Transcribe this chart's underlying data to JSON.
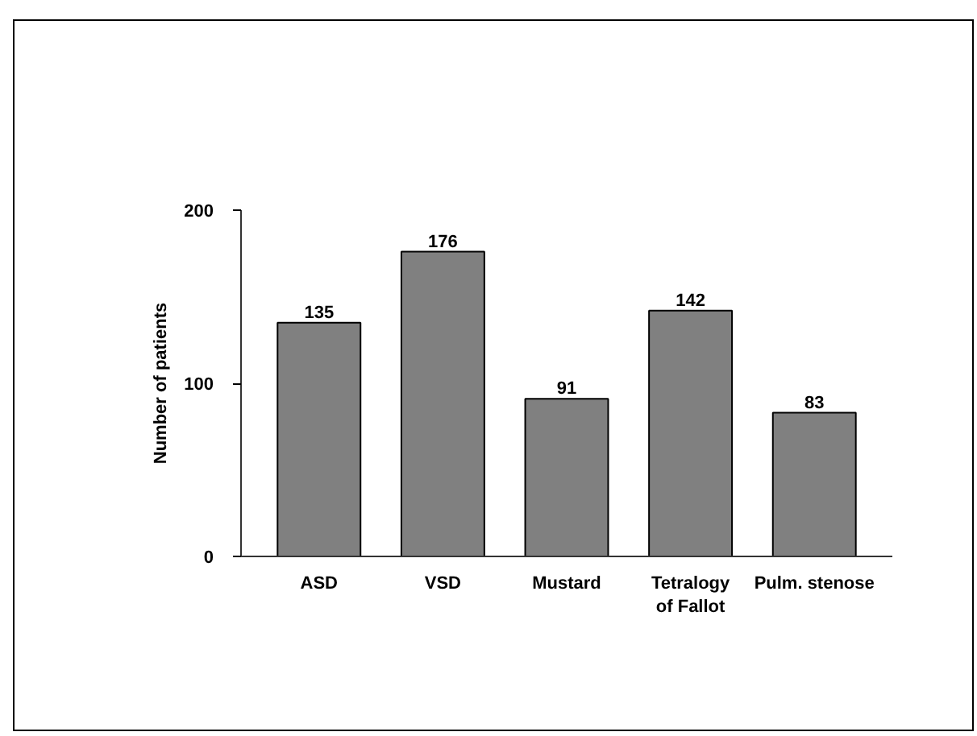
{
  "chart_data": {
    "type": "bar",
    "ylabel": "Number of patients",
    "categories": [
      "ASD",
      "VSD",
      "Mustard",
      "Tetralogy\nof Fallot",
      "Pulm. stenose"
    ],
    "values": [
      135,
      176,
      91,
      142,
      83
    ],
    "color": "#808080",
    "ylim": [
      0,
      200
    ],
    "yticks": [
      0,
      100,
      200
    ],
    "data_labels": true
  }
}
